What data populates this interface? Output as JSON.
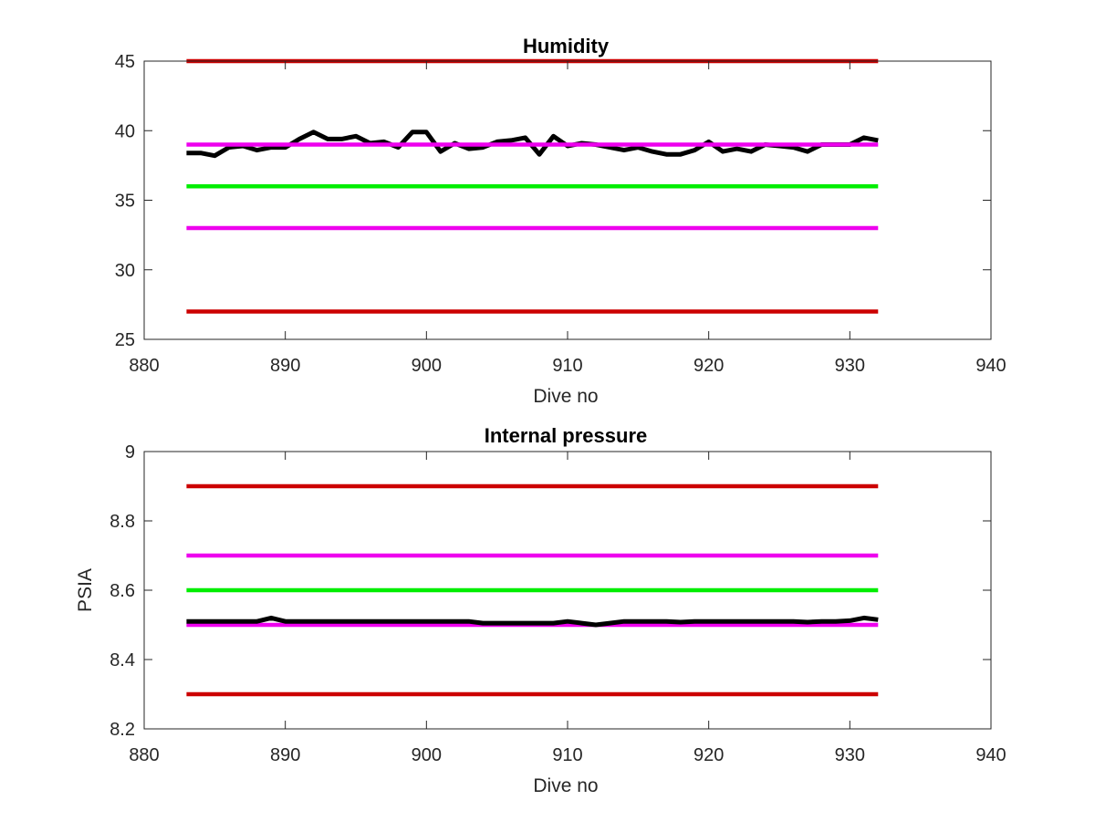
{
  "chart_data": [
    {
      "type": "line",
      "title": "Humidity",
      "xlabel": "Dive no",
      "ylabel": "",
      "xlim": [
        880,
        940
      ],
      "ylim": [
        25,
        45
      ],
      "xticks": [
        "880",
        "890",
        "900",
        "910",
        "920",
        "930",
        "940"
      ],
      "yticks": [
        "25",
        "30",
        "35",
        "40",
        "45"
      ],
      "grid": false,
      "series": [
        {
          "color": "#cc0000",
          "x": [
            883,
            932
          ],
          "y": [
            45,
            45
          ]
        },
        {
          "color": "#cc0000",
          "x": [
            883,
            932
          ],
          "y": [
            27,
            27
          ]
        },
        {
          "color": "#00ee00",
          "x": [
            883,
            932
          ],
          "y": [
            36,
            36
          ]
        },
        {
          "color": "#ee00ee",
          "x": [
            883,
            932
          ],
          "y": [
            33,
            33
          ]
        },
        {
          "color": "#000000",
          "x": [
            883,
            884,
            885,
            886,
            887,
            888,
            889,
            890,
            891,
            892,
            893,
            894,
            895,
            896,
            897,
            898,
            899,
            900,
            901,
            902,
            903,
            904,
            905,
            906,
            907,
            908,
            909,
            910,
            911,
            912,
            913,
            914,
            915,
            916,
            917,
            918,
            919,
            920,
            921,
            922,
            923,
            924,
            925,
            926,
            927,
            928,
            929,
            930,
            931,
            932
          ],
          "y": [
            38.4,
            38.4,
            38.2,
            38.8,
            38.9,
            38.6,
            38.8,
            38.8,
            39.4,
            39.9,
            39.4,
            39.4,
            39.6,
            39.1,
            39.2,
            38.8,
            39.9,
            39.9,
            38.5,
            39.1,
            38.7,
            38.8,
            39.2,
            39.3,
            39.5,
            38.3,
            39.6,
            38.9,
            39.1,
            39.0,
            38.8,
            38.6,
            38.8,
            38.5,
            38.3,
            38.3,
            38.6,
            39.2,
            38.5,
            38.7,
            38.5,
            39.0,
            38.9,
            38.8,
            38.5,
            39.0,
            39.0,
            39.0,
            39.5,
            39.3
          ]
        },
        {
          "color": "#ee00ee",
          "x": [
            883,
            932
          ],
          "y": [
            39,
            39
          ]
        }
      ]
    },
    {
      "type": "line",
      "title": "Internal pressure",
      "xlabel": "Dive no",
      "ylabel": "PSIA",
      "xlim": [
        880,
        940
      ],
      "ylim": [
        8.2,
        9
      ],
      "xticks": [
        "880",
        "890",
        "900",
        "910",
        "920",
        "930",
        "940"
      ],
      "yticks": [
        "8.2",
        "8.4",
        "8.6",
        "8.8",
        "9"
      ],
      "grid": false,
      "series": [
        {
          "color": "#cc0000",
          "x": [
            883,
            932
          ],
          "y": [
            8.9,
            8.9
          ]
        },
        {
          "color": "#cc0000",
          "x": [
            883,
            932
          ],
          "y": [
            8.3,
            8.3
          ]
        },
        {
          "color": "#ee00ee",
          "x": [
            883,
            932
          ],
          "y": [
            8.7,
            8.7
          ]
        },
        {
          "color": "#00ee00",
          "x": [
            883,
            932
          ],
          "y": [
            8.6,
            8.6
          ]
        },
        {
          "color": "#ee00ee",
          "x": [
            883,
            932
          ],
          "y": [
            8.5,
            8.5
          ]
        },
        {
          "color": "#000000",
          "x": [
            883,
            884,
            885,
            886,
            887,
            888,
            889,
            890,
            891,
            892,
            893,
            894,
            895,
            896,
            897,
            898,
            899,
            900,
            901,
            902,
            903,
            904,
            905,
            906,
            907,
            908,
            909,
            910,
            911,
            912,
            913,
            914,
            915,
            916,
            917,
            918,
            919,
            920,
            921,
            922,
            923,
            924,
            925,
            926,
            927,
            928,
            929,
            930,
            931,
            932
          ],
          "y": [
            8.51,
            8.51,
            8.51,
            8.51,
            8.51,
            8.51,
            8.52,
            8.51,
            8.51,
            8.51,
            8.51,
            8.51,
            8.51,
            8.51,
            8.51,
            8.51,
            8.51,
            8.51,
            8.51,
            8.51,
            8.51,
            8.505,
            8.505,
            8.505,
            8.505,
            8.505,
            8.505,
            8.51,
            8.505,
            8.5,
            8.505,
            8.51,
            8.51,
            8.51,
            8.51,
            8.508,
            8.51,
            8.51,
            8.51,
            8.51,
            8.51,
            8.51,
            8.51,
            8.51,
            8.508,
            8.51,
            8.51,
            8.512,
            8.52,
            8.515
          ]
        }
      ]
    }
  ]
}
